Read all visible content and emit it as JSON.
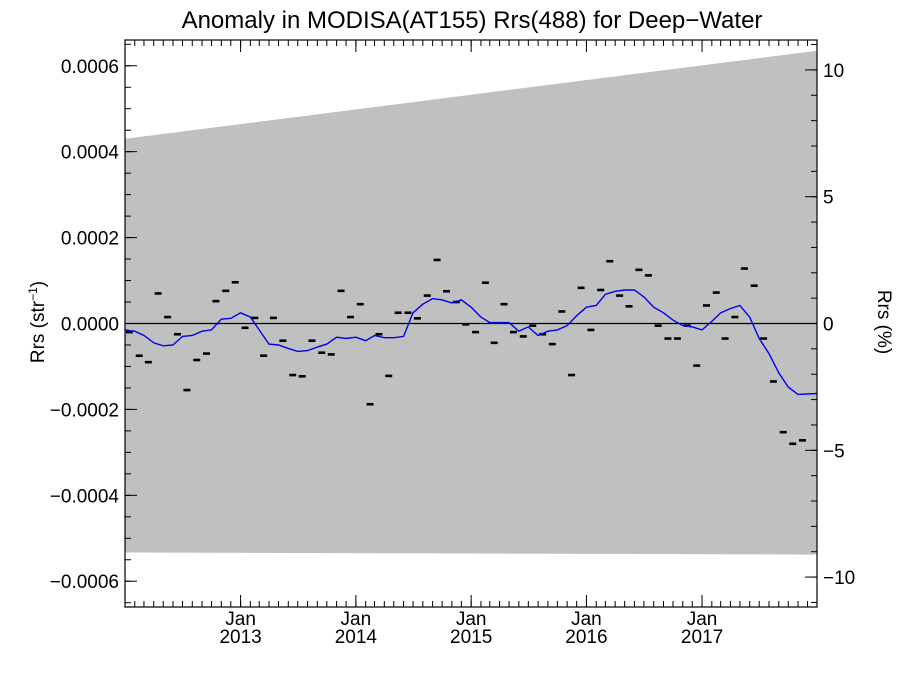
{
  "chart_data": {
    "type": "line",
    "title": "Anomaly in MODISA(AT155) Rrs(488) for Deep−Water",
    "ylabel_left": "Rrs (str",
    "ylabel_left_sup": "−1",
    "ylabel_left_close": ")",
    "ylabel_right": "Rrs (%)",
    "x_range": [
      "2012-01-01",
      "2017-12-31"
    ],
    "ylim_left": [
      -0.00066,
      0.00066
    ],
    "ylim_right": [
      -11.18,
      11.18
    ],
    "x_ticks": [
      {
        "date": "2013-01-01",
        "month": "Jan",
        "year": "2013"
      },
      {
        "date": "2014-01-01",
        "month": "Jan",
        "year": "2014"
      },
      {
        "date": "2015-01-01",
        "month": "Jan",
        "year": "2015"
      },
      {
        "date": "2016-01-01",
        "month": "Jan",
        "year": "2016"
      },
      {
        "date": "2017-01-01",
        "month": "Jan",
        "year": "2017"
      }
    ],
    "y_ticks_left": [
      {
        "value": 0.0006,
        "label": "0.0006"
      },
      {
        "value": 0.0004,
        "label": "0.0004"
      },
      {
        "value": 0.0002,
        "label": "0.0002"
      },
      {
        "value": 0.0,
        "label": "0.0000"
      },
      {
        "value": -0.0002,
        "label": "−0.0002"
      },
      {
        "value": -0.0004,
        "label": "−0.0004"
      },
      {
        "value": -0.0006,
        "label": "−0.0006"
      }
    ],
    "y_ticks_right": [
      {
        "value": 10,
        "label": "10"
      },
      {
        "value": 5,
        "label": "5"
      },
      {
        "value": 0,
        "label": "0"
      },
      {
        "value": -5,
        "label": "−5"
      },
      {
        "value": -10,
        "label": "−10"
      }
    ],
    "band": {
      "color": "#c0c0c0",
      "upper": [
        {
          "x": "2012-01-01",
          "y": 0.00043
        },
        {
          "x": "2017-12-31",
          "y": 0.000635
        }
      ],
      "lower": [
        {
          "x": "2012-01-01",
          "y": -0.000533
        },
        {
          "x": "2017-12-31",
          "y": -0.000538
        }
      ]
    },
    "zero_line": true,
    "series": [
      {
        "kind": "monthly",
        "color": "#000000",
        "marker": "dash",
        "points": [
          {
            "x": "2012-01-15",
            "y": -2e-05
          },
          {
            "x": "2012-02-15",
            "y": -7.5e-05
          },
          {
            "x": "2012-03-15",
            "y": -9e-05
          },
          {
            "x": "2012-04-15",
            "y": 7e-05
          },
          {
            "x": "2012-05-15",
            "y": 1.5e-05
          },
          {
            "x": "2012-06-15",
            "y": -2.5e-05
          },
          {
            "x": "2012-07-15",
            "y": -0.000155
          },
          {
            "x": "2012-08-15",
            "y": -8.5e-05
          },
          {
            "x": "2012-09-15",
            "y": -7e-05
          },
          {
            "x": "2012-10-15",
            "y": 5.2e-05
          },
          {
            "x": "2012-11-15",
            "y": 7.6e-05
          },
          {
            "x": "2012-12-15",
            "y": 9.6e-05
          },
          {
            "x": "2013-01-15",
            "y": -1e-05
          },
          {
            "x": "2013-02-15",
            "y": 1.3e-05
          },
          {
            "x": "2013-03-15",
            "y": -7.5e-05
          },
          {
            "x": "2013-04-15",
            "y": 1.3e-05
          },
          {
            "x": "2013-05-15",
            "y": -4e-05
          },
          {
            "x": "2013-06-15",
            "y": -0.00012
          },
          {
            "x": "2013-07-15",
            "y": -0.000123
          },
          {
            "x": "2013-08-15",
            "y": -4e-05
          },
          {
            "x": "2013-09-15",
            "y": -6.8e-05
          },
          {
            "x": "2013-10-15",
            "y": -7.2e-05
          },
          {
            "x": "2013-11-15",
            "y": 7.6e-05
          },
          {
            "x": "2013-12-15",
            "y": 1.5e-05
          },
          {
            "x": "2014-01-15",
            "y": 4.5e-05
          },
          {
            "x": "2014-02-15",
            "y": -0.000188
          },
          {
            "x": "2014-03-15",
            "y": -2.5e-05
          },
          {
            "x": "2014-04-15",
            "y": -0.000122
          },
          {
            "x": "2014-05-15",
            "y": 2.5e-05
          },
          {
            "x": "2014-06-15",
            "y": 2.5e-05
          },
          {
            "x": "2014-07-15",
            "y": 1.2e-05
          },
          {
            "x": "2014-08-15",
            "y": 6.5e-05
          },
          {
            "x": "2014-09-15",
            "y": 0.000148
          },
          {
            "x": "2014-10-15",
            "y": 7.5e-05
          },
          {
            "x": "2014-11-15",
            "y": 5e-05
          },
          {
            "x": "2014-12-15",
            "y": -2e-06
          },
          {
            "x": "2015-01-15",
            "y": -2e-05
          },
          {
            "x": "2015-02-15",
            "y": 9.5e-05
          },
          {
            "x": "2015-03-15",
            "y": -4.5e-05
          },
          {
            "x": "2015-04-15",
            "y": 4.5e-05
          },
          {
            "x": "2015-05-15",
            "y": -2e-05
          },
          {
            "x": "2015-06-15",
            "y": -3e-05
          },
          {
            "x": "2015-07-15",
            "y": -5e-06
          },
          {
            "x": "2015-08-15",
            "y": -2.5e-05
          },
          {
            "x": "2015-09-15",
            "y": -4.8e-05
          },
          {
            "x": "2015-10-15",
            "y": 2.8e-05
          },
          {
            "x": "2015-11-15",
            "y": -0.00012
          },
          {
            "x": "2015-12-15",
            "y": 8.3e-05
          },
          {
            "x": "2016-01-15",
            "y": -1.5e-05
          },
          {
            "x": "2016-02-15",
            "y": 7.8e-05
          },
          {
            "x": "2016-03-15",
            "y": 0.000145
          },
          {
            "x": "2016-04-15",
            "y": 6.5e-05
          },
          {
            "x": "2016-05-15",
            "y": 4e-05
          },
          {
            "x": "2016-06-15",
            "y": 0.000125
          },
          {
            "x": "2016-07-15",
            "y": 0.000112
          },
          {
            "x": "2016-08-15",
            "y": -5e-06
          },
          {
            "x": "2016-09-15",
            "y": -3.5e-05
          },
          {
            "x": "2016-10-15",
            "y": -3.5e-05
          },
          {
            "x": "2016-11-15",
            "y": -5e-06
          },
          {
            "x": "2016-12-15",
            "y": -9.8e-05
          },
          {
            "x": "2017-01-15",
            "y": 4.2e-05
          },
          {
            "x": "2017-02-15",
            "y": 7.2e-05
          },
          {
            "x": "2017-03-15",
            "y": -3.5e-05
          },
          {
            "x": "2017-04-15",
            "y": 1.5e-05
          },
          {
            "x": "2017-05-15",
            "y": 0.000128
          },
          {
            "x": "2017-06-15",
            "y": 8.8e-05
          },
          {
            "x": "2017-07-15",
            "y": -3.5e-05
          },
          {
            "x": "2017-08-15",
            "y": -0.000135
          },
          {
            "x": "2017-09-15",
            "y": -0.000253
          },
          {
            "x": "2017-10-15",
            "y": -0.00028
          },
          {
            "x": "2017-11-15",
            "y": -0.000272
          }
        ]
      },
      {
        "kind": "smoothed",
        "color": "#0000ee",
        "points": [
          {
            "x": "2012-01-01",
            "y": -1.5e-05
          },
          {
            "x": "2012-02-01",
            "y": -1.8e-05
          },
          {
            "x": "2012-03-01",
            "y": -2.8e-05
          },
          {
            "x": "2012-04-01",
            "y": -4.5e-05
          },
          {
            "x": "2012-05-01",
            "y": -5.2e-05
          },
          {
            "x": "2012-06-01",
            "y": -5e-05
          },
          {
            "x": "2012-07-01",
            "y": -3e-05
          },
          {
            "x": "2012-08-01",
            "y": -2.8e-05
          },
          {
            "x": "2012-09-01",
            "y": -1.8e-05
          },
          {
            "x": "2012-10-01",
            "y": -1.5e-05
          },
          {
            "x": "2012-11-01",
            "y": 1e-05
          },
          {
            "x": "2012-12-01",
            "y": 1.2e-05
          },
          {
            "x": "2013-01-01",
            "y": 2.5e-05
          },
          {
            "x": "2013-02-01",
            "y": 1.5e-05
          },
          {
            "x": "2013-03-01",
            "y": -1.5e-05
          },
          {
            "x": "2013-04-01",
            "y": -4.8e-05
          },
          {
            "x": "2013-05-01",
            "y": -5e-05
          },
          {
            "x": "2013-06-01",
            "y": -5.8e-05
          },
          {
            "x": "2013-07-01",
            "y": -6.5e-05
          },
          {
            "x": "2013-08-01",
            "y": -6.3e-05
          },
          {
            "x": "2013-09-01",
            "y": -5.5e-05
          },
          {
            "x": "2013-10-01",
            "y": -4.8e-05
          },
          {
            "x": "2013-11-01",
            "y": -3.2e-05
          },
          {
            "x": "2013-12-01",
            "y": -3.5e-05
          },
          {
            "x": "2014-01-01",
            "y": -3.2e-05
          },
          {
            "x": "2014-02-01",
            "y": -4e-05
          },
          {
            "x": "2014-03-01",
            "y": -2.8e-05
          },
          {
            "x": "2014-04-01",
            "y": -3.3e-05
          },
          {
            "x": "2014-05-01",
            "y": -3.3e-05
          },
          {
            "x": "2014-06-01",
            "y": -3e-05
          },
          {
            "x": "2014-07-01",
            "y": 2.5e-05
          },
          {
            "x": "2014-08-01",
            "y": 4.5e-05
          },
          {
            "x": "2014-09-01",
            "y": 5.8e-05
          },
          {
            "x": "2014-10-01",
            "y": 5.5e-05
          },
          {
            "x": "2014-11-01",
            "y": 4.8e-05
          },
          {
            "x": "2014-12-01",
            "y": 5.5e-05
          },
          {
            "x": "2015-01-01",
            "y": 3.8e-05
          },
          {
            "x": "2015-02-01",
            "y": 1.5e-05
          },
          {
            "x": "2015-03-01",
            "y": 2e-06
          },
          {
            "x": "2015-04-01",
            "y": 2e-06
          },
          {
            "x": "2015-05-01",
            "y": 2e-06
          },
          {
            "x": "2015-06-01",
            "y": -1.8e-05
          },
          {
            "x": "2015-07-01",
            "y": -8e-06
          },
          {
            "x": "2015-08-01",
            "y": -2.8e-05
          },
          {
            "x": "2015-09-01",
            "y": -1.8e-05
          },
          {
            "x": "2015-10-01",
            "y": -1.5e-05
          },
          {
            "x": "2015-11-01",
            "y": -5e-06
          },
          {
            "x": "2015-12-01",
            "y": 1.8e-05
          },
          {
            "x": "2016-01-01",
            "y": 3.8e-05
          },
          {
            "x": "2016-02-01",
            "y": 4.2e-05
          },
          {
            "x": "2016-03-01",
            "y": 6.8e-05
          },
          {
            "x": "2016-04-01",
            "y": 7.5e-05
          },
          {
            "x": "2016-05-01",
            "y": 7.8e-05
          },
          {
            "x": "2016-06-01",
            "y": 7.8e-05
          },
          {
            "x": "2016-07-01",
            "y": 6.2e-05
          },
          {
            "x": "2016-08-01",
            "y": 3.8e-05
          },
          {
            "x": "2016-09-01",
            "y": 2.5e-05
          },
          {
            "x": "2016-10-01",
            "y": 8e-06
          },
          {
            "x": "2016-11-01",
            "y": -5e-06
          },
          {
            "x": "2016-12-01",
            "y": -8e-06
          },
          {
            "x": "2017-01-01",
            "y": -1.5e-05
          },
          {
            "x": "2017-02-01",
            "y": 5e-06
          },
          {
            "x": "2017-03-01",
            "y": 2.5e-05
          },
          {
            "x": "2017-04-01",
            "y": 3.5e-05
          },
          {
            "x": "2017-05-01",
            "y": 4.2e-05
          },
          {
            "x": "2017-06-01",
            "y": 1.5e-05
          },
          {
            "x": "2017-07-01",
            "y": -3.5e-05
          },
          {
            "x": "2017-08-01",
            "y": -7e-05
          },
          {
            "x": "2017-09-01",
            "y": -0.000115
          },
          {
            "x": "2017-10-01",
            "y": -0.000148
          },
          {
            "x": "2017-11-01",
            "y": -0.000165
          },
          {
            "x": "2017-12-31",
            "y": -0.000163
          }
        ]
      }
    ]
  }
}
